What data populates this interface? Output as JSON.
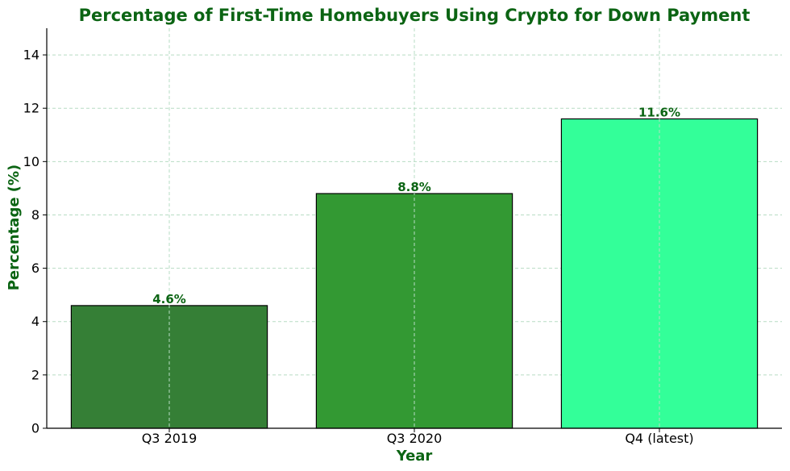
{
  "colors": {
    "text_accent": "#0b6413",
    "grid": "#b7dcc4",
    "axis": "#000000",
    "bar_edge": "#000000"
  },
  "chart_data": {
    "type": "bar",
    "title": "Percentage of First-Time Homebuyers Using Crypto for Down Payment",
    "xlabel": "Year",
    "ylabel": "Percentage (%)",
    "categories": [
      "Q3 2019",
      "Q3 2020",
      "Q4 (latest)"
    ],
    "values": [
      4.6,
      8.8,
      11.6
    ],
    "data_labels": [
      "4.6%",
      "8.8%",
      "11.6%"
    ],
    "bar_colors": [
      "#357f36",
      "#339933",
      "#33ff99"
    ],
    "ylim": [
      0,
      15
    ],
    "yticks": [
      0,
      2,
      4,
      6,
      8,
      10,
      12,
      14
    ],
    "grid": true,
    "legend": "none"
  }
}
